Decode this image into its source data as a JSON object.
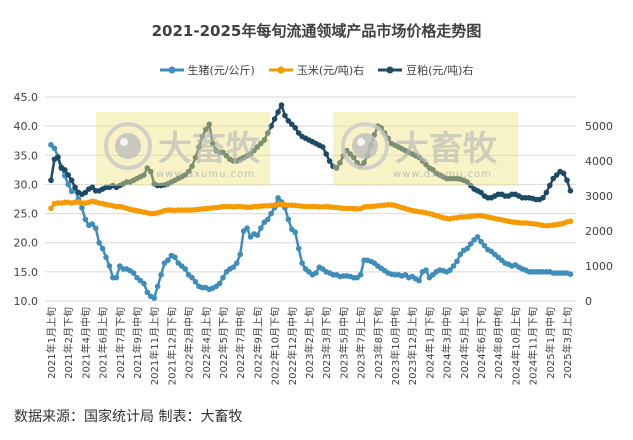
{
  "chart_data": {
    "type": "line",
    "title": "2021-2025年每旬流通领域产品市场价格走势图",
    "source": "数据来源：国家统计局  制表：大畜牧",
    "watermark": {
      "logo_text": "大畜牧",
      "url_text": "www.dxumu.com"
    },
    "xlabel": "",
    "ylabel": "",
    "ylim": [
      10,
      45
    ],
    "y2lim": [
      0,
      5830
    ],
    "grid": true,
    "legend_position": "top",
    "left_ticks": [
      "10.0",
      "15.0",
      "20.0",
      "25.0",
      "30.0",
      "35.0",
      "40.0",
      "45.0"
    ],
    "right_ticks": [
      "0",
      "1000",
      "2000",
      "3000",
      "4000",
      "5000"
    ],
    "x_tick_labels": [
      "2021年1月上旬",
      "2021年2月下旬",
      "2021年4月中旬",
      "2021年6月上旬",
      "2021年7月下旬",
      "2021年9月中旬",
      "2021年11月上旬",
      "2021年12月下旬",
      "2022年2月中旬",
      "2022年4月上旬",
      "2022年5月下旬",
      "2022年7月中旬",
      "2022年9月上旬",
      "2022年10月下旬",
      "2022年12月中旬",
      "2023年2月上旬",
      "2023年3月下旬",
      "2023年5月中旬",
      "2023年7月上旬",
      "2023年8月下旬",
      "2023年10月中旬",
      "2023年12月上旬",
      "2024年1月下旬",
      "2024年3月中旬",
      "2024年5月上旬",
      "2024年6月下旬",
      "2024年8月中旬",
      "2024年10月上旬",
      "2024年11月下旬",
      "2025年1月中旬",
      "2025年3月上旬"
    ],
    "x_tick_every": 5,
    "series": [
      {
        "name": "生猪(元/公斤)",
        "axis": "left",
        "color": "#3e8dbb",
        "values": [
          36.8,
          36.2,
          34.8,
          33,
          31.5,
          30,
          28.8,
          29,
          27.5,
          26,
          24,
          23,
          23.2,
          22.5,
          20,
          19,
          17.5,
          16,
          14,
          14,
          16,
          15.5,
          15.5,
          15.2,
          14.8,
          14,
          13.5,
          13,
          11.5,
          10.8,
          10.5,
          12.5,
          14.5,
          16.5,
          17,
          17.8,
          17.5,
          16.5,
          16,
          15.5,
          14.5,
          14,
          13.3,
          12.5,
          12.3,
          12.3,
          12,
          12.2,
          12.5,
          13,
          14,
          15,
          15.5,
          15.8,
          16.5,
          18,
          22,
          22.5,
          21,
          21.5,
          21.3,
          22.5,
          23.5,
          24,
          25,
          26,
          27.7,
          27,
          26,
          24,
          22.3,
          21.8,
          19,
          16.5,
          15.5,
          15,
          14.5,
          14.8,
          15.8,
          15.5,
          15,
          14.8,
          14.5,
          14.5,
          14.2,
          14.3,
          14.3,
          14.2,
          14,
          14,
          14.5,
          17,
          17,
          16.8,
          16.5,
          16,
          15.6,
          15.2,
          14.8,
          14.6,
          14.5,
          14.5,
          14.3,
          14.5,
          14,
          14.2,
          13.8,
          13.5,
          15,
          15.3,
          14,
          14.5,
          15,
          15.3,
          15.2,
          15,
          15.3,
          16,
          16.8,
          18,
          18.7,
          19,
          19.8,
          20.5,
          21,
          20.2,
          19.5,
          18.8,
          18.5,
          18,
          17.5,
          17,
          16.5,
          16.3,
          16,
          16.2,
          15.8,
          15.5,
          15.3,
          15,
          15,
          15,
          15,
          15,
          15,
          15,
          14.8,
          14.8,
          14.8,
          14.8,
          14.8,
          14.6
        ]
      },
      {
        "name": "玉米(元/吨)右",
        "axis": "right",
        "color": "#f59a00",
        "values": [
          2650,
          2780,
          2800,
          2800,
          2820,
          2820,
          2800,
          2820,
          2830,
          2800,
          2800,
          2820,
          2850,
          2830,
          2800,
          2780,
          2760,
          2740,
          2720,
          2700,
          2700,
          2680,
          2650,
          2620,
          2600,
          2580,
          2560,
          2540,
          2520,
          2500,
          2500,
          2520,
          2550,
          2580,
          2600,
          2600,
          2590,
          2600,
          2600,
          2600,
          2600,
          2600,
          2610,
          2620,
          2630,
          2640,
          2650,
          2660,
          2670,
          2680,
          2700,
          2700,
          2700,
          2690,
          2700,
          2700,
          2690,
          2680,
          2680,
          2700,
          2700,
          2710,
          2720,
          2720,
          2730,
          2740,
          2750,
          2760,
          2750,
          2740,
          2740,
          2730,
          2720,
          2710,
          2700,
          2700,
          2700,
          2700,
          2690,
          2690,
          2700,
          2690,
          2680,
          2670,
          2660,
          2650,
          2640,
          2650,
          2640,
          2630,
          2640,
          2680,
          2700,
          2700,
          2710,
          2720,
          2730,
          2740,
          2750,
          2750,
          2730,
          2700,
          2670,
          2640,
          2610,
          2590,
          2570,
          2550,
          2540,
          2520,
          2500,
          2470,
          2440,
          2410,
          2380,
          2360,
          2350,
          2370,
          2380,
          2400,
          2400,
          2410,
          2420,
          2430,
          2440,
          2440,
          2420,
          2400,
          2380,
          2360,
          2340,
          2320,
          2300,
          2280,
          2260,
          2250,
          2240,
          2230,
          2230,
          2220,
          2210,
          2200,
          2180,
          2160,
          2150,
          2160,
          2170,
          2180,
          2200,
          2220,
          2260,
          2280
        ]
      },
      {
        "name": "豆粕(元/吨)右",
        "axis": "right",
        "color": "#1e4a66",
        "values": [
          3450,
          4050,
          4100,
          3800,
          3750,
          3600,
          3450,
          3250,
          3100,
          3050,
          3100,
          3200,
          3250,
          3150,
          3150,
          3200,
          3250,
          3250,
          3300,
          3250,
          3300,
          3350,
          3400,
          3400,
          3450,
          3500,
          3550,
          3600,
          3800,
          3700,
          3350,
          3300,
          3300,
          3320,
          3350,
          3400,
          3450,
          3500,
          3550,
          3600,
          3700,
          3850,
          4100,
          4400,
          4700,
          4900,
          5050,
          4500,
          4300,
          4250,
          4250,
          4150,
          4050,
          4000,
          4000,
          4050,
          4100,
          4150,
          4200,
          4300,
          4400,
          4500,
          4600,
          4800,
          5000,
          5200,
          5400,
          5600,
          5300,
          5150,
          5050,
          4950,
          4800,
          4700,
          4650,
          4600,
          4550,
          4500,
          4450,
          4400,
          4200,
          4000,
          3850,
          3800,
          3950,
          4150,
          4300,
          4200,
          4100,
          3950,
          3850,
          3950,
          4150,
          4450,
          4750,
          5000,
          4950,
          4800,
          4650,
          4500,
          4450,
          4400,
          4350,
          4300,
          4250,
          4200,
          4150,
          4100,
          4000,
          3900,
          3800,
          3750,
          3650,
          3600,
          3550,
          3500,
          3500,
          3500,
          3500,
          3480,
          3450,
          3400,
          3300,
          3200,
          3150,
          3100,
          3000,
          2950,
          2950,
          3000,
          3050,
          3050,
          3000,
          3000,
          3050,
          3050,
          3000,
          2950,
          2950,
          2950,
          2930,
          2900,
          2900,
          2950,
          3100,
          3300,
          3500,
          3600,
          3700,
          3650,
          3450,
          3150
        ]
      }
    ]
  }
}
